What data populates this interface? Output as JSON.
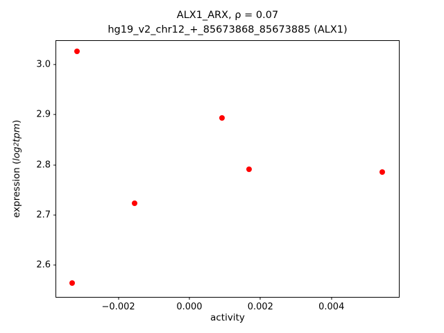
{
  "chart_data": {
    "type": "scatter",
    "title_line1": "ALX1_ARX, ρ = 0.07",
    "title_line2": "hg19_v2_chr12_+_85673868_85673885 (ALX1)",
    "xlabel": "activity",
    "ylabel": {
      "prefix": "expression (",
      "italic1": "log",
      "subscript": "2",
      "italic2": "tpm",
      "suffix": ")"
    },
    "marker_color": "#ff0000",
    "xlim": [
      -0.00375,
      0.0059
    ],
    "ylim": [
      2.537,
      3.047
    ],
    "x_ticks": [
      {
        "value": -0.002,
        "label": "−0.002"
      },
      {
        "value": 0.0,
        "label": "0.000"
      },
      {
        "value": 0.002,
        "label": "0.002"
      },
      {
        "value": 0.004,
        "label": "0.004"
      }
    ],
    "y_ticks": [
      {
        "value": 2.6,
        "label": "2.6"
      },
      {
        "value": 2.7,
        "label": "2.7"
      },
      {
        "value": 2.8,
        "label": "2.8"
      },
      {
        "value": 2.9,
        "label": "2.9"
      },
      {
        "value": 3.0,
        "label": "3.0"
      }
    ],
    "points": [
      {
        "x": -0.00317,
        "y": 3.026
      },
      {
        "x": -0.0033,
        "y": 2.564
      },
      {
        "x": -0.00155,
        "y": 2.724
      },
      {
        "x": 0.00092,
        "y": 2.894
      },
      {
        "x": 0.00168,
        "y": 2.791
      },
      {
        "x": 0.00543,
        "y": 2.786
      }
    ],
    "legend": null,
    "grid": false
  }
}
